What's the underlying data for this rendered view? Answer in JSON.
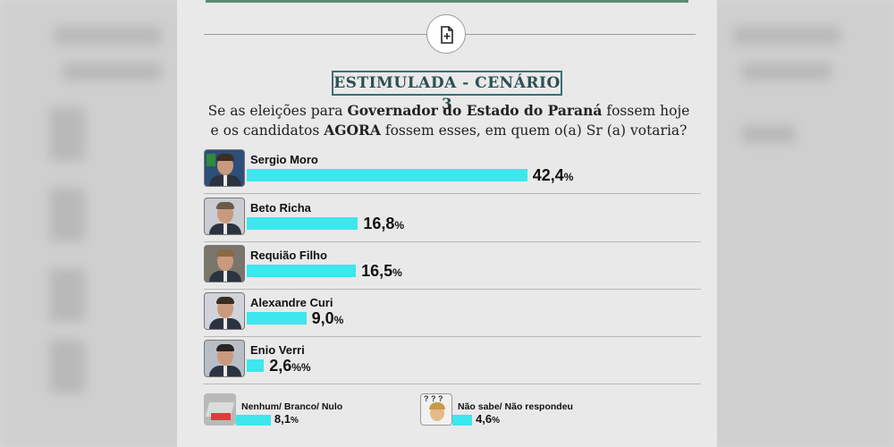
{
  "badge": "ESTIMULADA - CENÁRIO 3",
  "question": {
    "l1_pre": "Se as eleições para ",
    "l1_bold": "Governador do Estado do Paraná",
    "l1_post": " fossem hoje",
    "l2_pre": "e os candidatos ",
    "l2_bold": "AGORA",
    "l2_post": " fossem esses, em quem o(a) Sr (a) votaria?"
  },
  "chart_data": {
    "type": "bar",
    "categories": [
      "Sergio Moro",
      "Beto Richa",
      "Requião Filho",
      "Alexandre Curi",
      "Enio Verri"
    ],
    "values": [
      42.4,
      16.8,
      16.5,
      9.0,
      2.6
    ],
    "value_labels": [
      {
        "num": "42,4",
        "pct": "%"
      },
      {
        "num": "16,8",
        "pct": "%"
      },
      {
        "num": "16,5",
        "pct": "%"
      },
      {
        "num": "9,0",
        "pct": "%"
      },
      {
        "num": "2,6",
        "pct": "%%"
      }
    ],
    "extras": [
      {
        "label": "Nenhum/ Branco/ Nulo",
        "value": 8.1,
        "num": "8,1",
        "pct": "%"
      },
      {
        "label": "Não sabe/ Não respondeu",
        "value": 4.6,
        "num": "4,6",
        "pct": "%"
      }
    ],
    "bar_color": "#3ee6ee"
  },
  "icons": {
    "top": "add-document-icon"
  }
}
